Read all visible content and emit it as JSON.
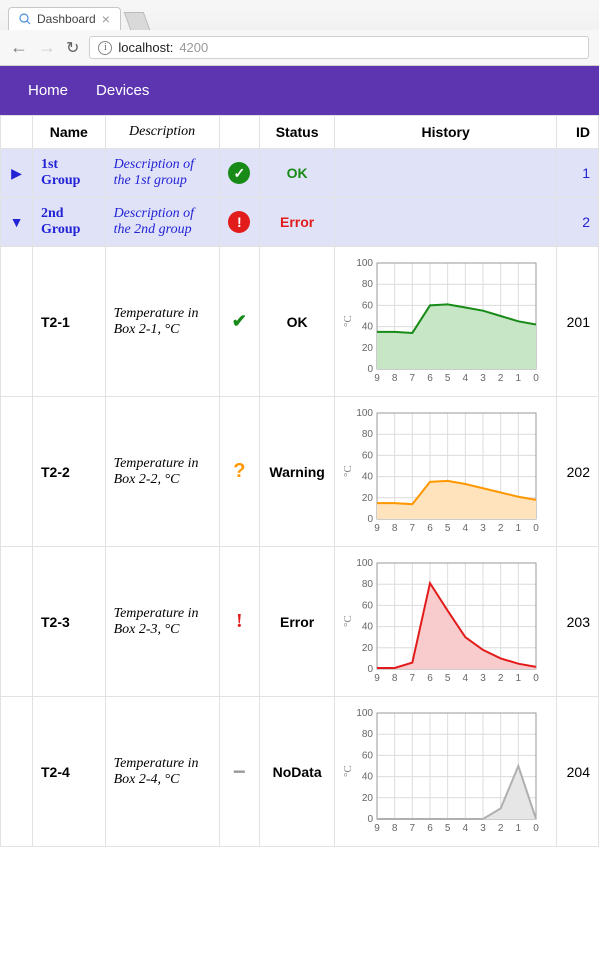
{
  "browser": {
    "tab_title": "Dashboard",
    "url_host": "localhost:",
    "url_port": "4200"
  },
  "nav": {
    "items": [
      "Home",
      "Devices"
    ]
  },
  "table": {
    "headers": {
      "name": "Name",
      "description": "Description",
      "status": "Status",
      "history": "History",
      "id": "ID"
    },
    "groups": [
      {
        "expanded": false,
        "name": "1st Group",
        "description": "Description of the 1st group",
        "status_icon": "ok-filled",
        "status_text": "OK",
        "status_color": "#178a17",
        "id": "1"
      },
      {
        "expanded": true,
        "name": "2nd Group",
        "description": "Description of the 2nd group",
        "status_icon": "error-filled",
        "status_text": "Error",
        "status_color": "#e21b1b",
        "id": "2"
      }
    ],
    "rows": [
      {
        "name": "T2-1",
        "description": "Temperature in Box 2-1, °C",
        "status_icon": "ok",
        "status_text": "OK",
        "id": "201",
        "chart": {
          "type": "area",
          "x_ticks": [
            9,
            8,
            7,
            6,
            5,
            4,
            3,
            2,
            1,
            0
          ],
          "y_ticks": [
            0,
            20,
            40,
            60,
            80,
            100
          ],
          "ylim": [
            0,
            100
          ],
          "ylabel": "°C",
          "stroke": "#178a17",
          "fill": "#c6e6c6",
          "stroke_width": 2,
          "grid_color": "#dcdcdc",
          "background": "#ffffff",
          "values": [
            35,
            35,
            34,
            60,
            61,
            58,
            55,
            50,
            45,
            42
          ]
        }
      },
      {
        "name": "T2-2",
        "description": "Temperature in Box 2-2, °C",
        "status_icon": "warning",
        "status_text": "Warning",
        "id": "202",
        "chart": {
          "type": "area",
          "x_ticks": [
            9,
            8,
            7,
            6,
            5,
            4,
            3,
            2,
            1,
            0
          ],
          "y_ticks": [
            0,
            20,
            40,
            60,
            80,
            100
          ],
          "ylim": [
            0,
            100
          ],
          "ylabel": "°C",
          "stroke": "#ff9800",
          "fill": "#ffe3bd",
          "stroke_width": 2,
          "grid_color": "#dcdcdc",
          "background": "#ffffff",
          "values": [
            15,
            15,
            14,
            35,
            36,
            33,
            29,
            25,
            21,
            18
          ]
        }
      },
      {
        "name": "T2-3",
        "description": "Temperature in Box 2-3, °C",
        "status_icon": "error",
        "status_text": "Error",
        "id": "203",
        "chart": {
          "type": "area",
          "x_ticks": [
            9,
            8,
            7,
            6,
            5,
            4,
            3,
            2,
            1,
            0
          ],
          "y_ticks": [
            0,
            20,
            40,
            60,
            80,
            100
          ],
          "ylim": [
            0,
            100
          ],
          "ylabel": "°C",
          "stroke": "#e21b1b",
          "fill": "#f8cccc",
          "stroke_width": 2,
          "grid_color": "#dcdcdc",
          "background": "#ffffff",
          "values": [
            1,
            1,
            6,
            81,
            55,
            30,
            18,
            10,
            5,
            2
          ]
        }
      },
      {
        "name": "T2-4",
        "description": "Temperature in Box 2-4, °C",
        "status_icon": "nodata",
        "status_text": "NoData",
        "id": "204",
        "chart": {
          "type": "area",
          "x_ticks": [
            9,
            8,
            7,
            6,
            5,
            4,
            3,
            2,
            1,
            0
          ],
          "y_ticks": [
            0,
            20,
            40,
            60,
            80,
            100
          ],
          "ylim": [
            0,
            100
          ],
          "ylabel": "°C",
          "stroke": "#b0b0b0",
          "fill": "#e6e6e6",
          "stroke_width": 2,
          "grid_color": "#dcdcdc",
          "background": "#ffffff",
          "values": [
            0,
            0,
            0,
            0,
            0,
            0,
            0,
            10,
            50,
            0
          ]
        }
      }
    ]
  }
}
